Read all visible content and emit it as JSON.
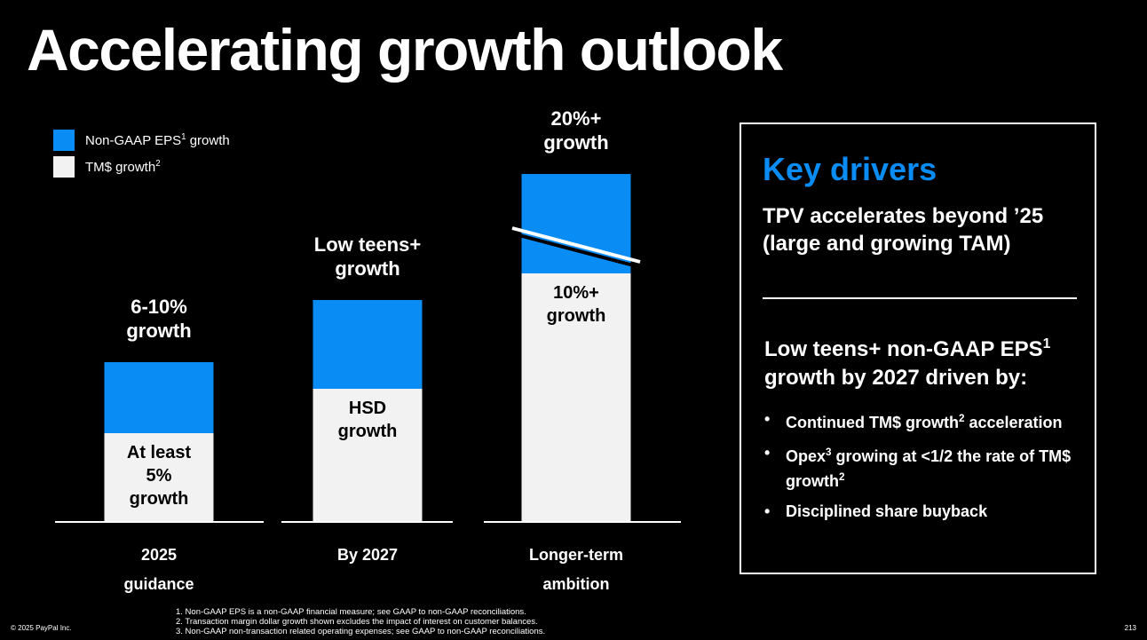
{
  "title": "Accelerating growth outlook",
  "legend": [
    {
      "label": "Non-GAAP EPS",
      "sup": "1",
      "label_after": " growth",
      "color": "#0a8cf5"
    },
    {
      "label": "TM$ growth",
      "sup": "2",
      "label_after": "",
      "color": "#f2f2f2"
    }
  ],
  "chart_data": {
    "type": "bar",
    "stacked": true,
    "categories": [
      [
        "2025",
        "guidance"
      ],
      [
        "By 2027"
      ],
      [
        "Longer-term",
        "ambition"
      ]
    ],
    "series": [
      {
        "name": "TM$ growth",
        "color": "#f2f2f2",
        "values": [
          5,
          7.5,
          14
        ]
      },
      {
        "name": "Non-GAAP EPS growth",
        "color": "#0a8cf5",
        "values": [
          4,
          5,
          5.6
        ]
      }
    ],
    "totals": [
      9,
      12.5,
      19.6
    ],
    "axis_break_on": "Longer-term ambition",
    "top_labels": [
      [
        "6-10%",
        "growth"
      ],
      [
        "Low teens+",
        "growth"
      ],
      [
        "20%+",
        "growth"
      ]
    ],
    "inner_labels": [
      [
        "At least",
        "5%",
        "growth"
      ],
      [
        "HSD",
        "growth"
      ],
      [
        "10%+",
        "growth"
      ]
    ],
    "ylim": [
      0,
      20
    ]
  },
  "panel": {
    "title": "Key drivers",
    "subtitle": "TPV accelerates beyond ’25 (large and growing TAM)",
    "heading_a": "Low teens+ non-GAAP EPS",
    "heading_sup": "1",
    "heading_b": "growth by 2027 driven by:",
    "bullets": [
      {
        "text": "Continued TM$ growth",
        "sup": "2",
        "after": " acceleration"
      },
      {
        "text": "Opex",
        "sup": "3",
        "after": " growing at <1/2 the rate of TM$ growth",
        "sup2": "2"
      },
      {
        "text": "Disciplined share buyback",
        "sup": "",
        "after": ""
      }
    ]
  },
  "footnotes": [
    "1.  Non-GAAP EPS is a non-GAAP financial measure; see GAAP to non-GAAP reconciliations.",
    "2.  Transaction margin dollar growth shown excludes the impact of interest on customer balances.",
    "3.  Non-GAAP non-transaction related operating expenses; see GAAP to non-GAAP reconciliations."
  ],
  "copyright": "© 2025 PayPal Inc.",
  "page_number": "213"
}
